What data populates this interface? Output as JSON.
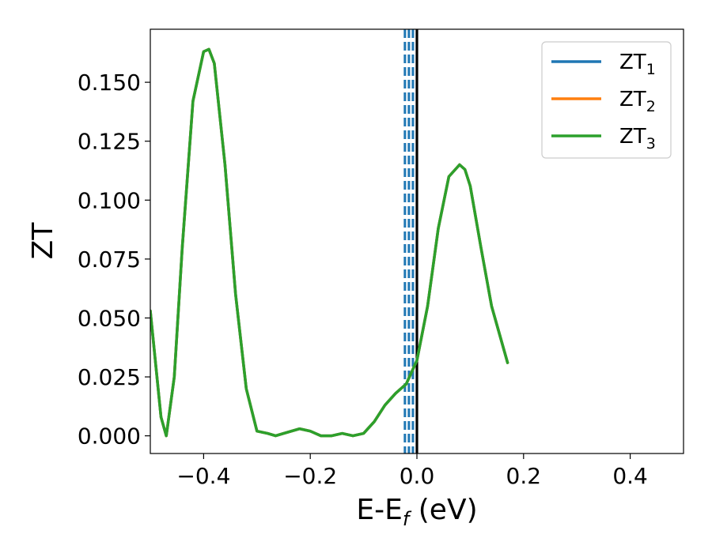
{
  "chart_data": {
    "type": "line",
    "title": "",
    "xlabel": {
      "main": "E-E",
      "sub": "f",
      "suffix": " (eV)"
    },
    "ylabel": "ZT",
    "xlim": [
      -0.5,
      0.5
    ],
    "ylim": [
      -0.0075,
      0.1725
    ],
    "grid": false,
    "legend_position": "top-right",
    "x_ticks": [
      {
        "value": -0.4,
        "label": "−0.4"
      },
      {
        "value": -0.2,
        "label": "−0.2"
      },
      {
        "value": 0.0,
        "label": "0.0"
      },
      {
        "value": 0.2,
        "label": "0.2"
      },
      {
        "value": 0.4,
        "label": "0.4"
      }
    ],
    "y_ticks": [
      {
        "value": 0.0,
        "label": "0.000"
      },
      {
        "value": 0.025,
        "label": "0.025"
      },
      {
        "value": 0.05,
        "label": "0.050"
      },
      {
        "value": 0.075,
        "label": "0.075"
      },
      {
        "value": 0.1,
        "label": "0.100"
      },
      {
        "value": 0.125,
        "label": "0.125"
      },
      {
        "value": 0.15,
        "label": "0.150"
      }
    ],
    "series": [
      {
        "name": {
          "main": "ZT",
          "sub": "1"
        },
        "color": "#1f77b4",
        "x": [
          -0.5,
          -0.48,
          -0.47,
          -0.455,
          -0.44,
          -0.42,
          -0.4,
          -0.39,
          -0.38,
          -0.36,
          -0.34,
          -0.32,
          -0.3,
          -0.28,
          -0.265,
          -0.25,
          -0.22,
          -0.2,
          -0.18,
          -0.16,
          -0.14,
          -0.12,
          -0.1,
          -0.08,
          -0.06,
          -0.04,
          -0.02,
          0.0,
          0.02,
          0.04,
          0.06,
          0.08,
          0.09,
          0.1,
          0.12,
          0.14,
          0.17
        ],
        "y": [
          0.053,
          0.008,
          0.0,
          0.025,
          0.08,
          0.142,
          0.163,
          0.164,
          0.158,
          0.115,
          0.06,
          0.02,
          0.002,
          0.001,
          0.0,
          0.001,
          0.003,
          0.002,
          0.0,
          0.0,
          0.001,
          0.0,
          0.001,
          0.006,
          0.013,
          0.018,
          0.022,
          0.032,
          0.055,
          0.088,
          0.11,
          0.115,
          0.113,
          0.106,
          0.08,
          0.055,
          0.031
        ]
      },
      {
        "name": {
          "main": "ZT",
          "sub": "2"
        },
        "color": "#ff7f0e",
        "x": [
          -0.5,
          -0.48,
          -0.47,
          -0.455,
          -0.44,
          -0.42,
          -0.4,
          -0.39,
          -0.38,
          -0.36,
          -0.34,
          -0.32,
          -0.3,
          -0.28,
          -0.265,
          -0.25,
          -0.22,
          -0.2,
          -0.18,
          -0.16,
          -0.14,
          -0.12,
          -0.1,
          -0.08,
          -0.06,
          -0.04,
          -0.02,
          0.0,
          0.02,
          0.04,
          0.06,
          0.08,
          0.09,
          0.1,
          0.12,
          0.14,
          0.17
        ],
        "y": [
          0.053,
          0.008,
          0.0,
          0.025,
          0.08,
          0.142,
          0.163,
          0.164,
          0.158,
          0.115,
          0.06,
          0.02,
          0.002,
          0.001,
          0.0,
          0.001,
          0.003,
          0.002,
          0.0,
          0.0,
          0.001,
          0.0,
          0.001,
          0.006,
          0.013,
          0.018,
          0.022,
          0.032,
          0.055,
          0.088,
          0.11,
          0.115,
          0.113,
          0.106,
          0.08,
          0.055,
          0.031
        ]
      },
      {
        "name": {
          "main": "ZT",
          "sub": "3"
        },
        "color": "#2ca02c",
        "x": [
          -0.5,
          -0.48,
          -0.47,
          -0.455,
          -0.44,
          -0.42,
          -0.4,
          -0.39,
          -0.38,
          -0.36,
          -0.34,
          -0.32,
          -0.3,
          -0.28,
          -0.265,
          -0.25,
          -0.22,
          -0.2,
          -0.18,
          -0.16,
          -0.14,
          -0.12,
          -0.1,
          -0.08,
          -0.06,
          -0.04,
          -0.02,
          0.0,
          0.02,
          0.04,
          0.06,
          0.08,
          0.09,
          0.1,
          0.12,
          0.14,
          0.17
        ],
        "y": [
          0.053,
          0.008,
          0.0,
          0.025,
          0.08,
          0.142,
          0.163,
          0.164,
          0.158,
          0.115,
          0.06,
          0.02,
          0.002,
          0.001,
          0.0,
          0.001,
          0.003,
          0.002,
          0.0,
          0.0,
          0.001,
          0.0,
          0.001,
          0.006,
          0.013,
          0.018,
          0.022,
          0.032,
          0.055,
          0.088,
          0.11,
          0.115,
          0.113,
          0.106,
          0.08,
          0.055,
          0.031
        ]
      }
    ],
    "vertical_lines": [
      {
        "x": -0.0225,
        "color": "#1f77b4",
        "style": "dashed"
      },
      {
        "x": -0.015,
        "color": "#1f77b4",
        "style": "dashed"
      },
      {
        "x": -0.0075,
        "color": "#1f77b4",
        "style": "dashed"
      },
      {
        "x": 0.0,
        "color": "#000000",
        "style": "solid"
      }
    ]
  }
}
